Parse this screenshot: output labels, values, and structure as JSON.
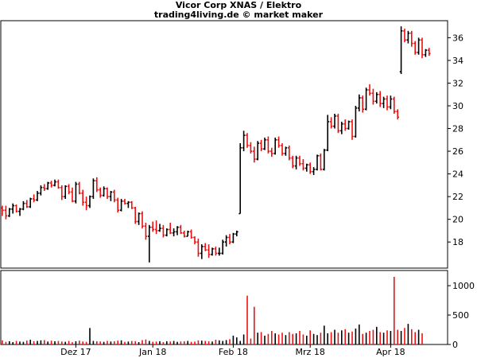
{
  "header": {
    "title": "Vicor Corp XNAS / Elektro",
    "subtitle": "trading4living.de © market maker"
  },
  "colors": {
    "up": "#000000",
    "down": "#ee1111",
    "frame": "#000000"
  },
  "chart_data": [
    {
      "type": "ohlc",
      "title": "Vicor Corp XNAS / Elektro",
      "subtitle": "trading4living.de © market maker",
      "ylim": [
        15.7,
        37.5
      ],
      "y_ticks": [
        18,
        20,
        22,
        24,
        26,
        28,
        30,
        32,
        34,
        36
      ],
      "y_tick_labels": [
        "18",
        "20",
        "22",
        "24",
        "26",
        "28",
        "30",
        "32",
        "34",
        "36"
      ],
      "x_labels": [
        "Dez 17",
        "Jan 18",
        "Feb 18",
        "Mrz 18",
        "Apr 18"
      ],
      "x_label_bar_index": [
        21,
        43,
        66,
        88,
        111
      ],
      "grid": false,
      "bars": [
        {
          "o": 21.0,
          "h": 21.2,
          "l": 20.3,
          "c": 20.8
        },
        {
          "o": 20.8,
          "h": 21.2,
          "l": 20.0,
          "c": 20.3
        },
        {
          "o": 20.3,
          "h": 21.0,
          "l": 20.2,
          "c": 20.9
        },
        {
          "o": 20.9,
          "h": 21.4,
          "l": 20.5,
          "c": 21.2
        },
        {
          "o": 21.2,
          "h": 21.3,
          "l": 20.6,
          "c": 20.7
        },
        {
          "o": 20.7,
          "h": 21.0,
          "l": 20.3,
          "c": 20.9
        },
        {
          "o": 20.9,
          "h": 21.6,
          "l": 20.8,
          "c": 21.4
        },
        {
          "o": 21.4,
          "h": 21.7,
          "l": 21.0,
          "c": 21.1
        },
        {
          "o": 21.1,
          "h": 21.9,
          "l": 21.0,
          "c": 21.8
        },
        {
          "o": 21.8,
          "h": 22.2,
          "l": 21.5,
          "c": 21.7
        },
        {
          "o": 21.7,
          "h": 22.5,
          "l": 21.6,
          "c": 22.3
        },
        {
          "o": 22.3,
          "h": 23.0,
          "l": 22.1,
          "c": 22.8
        },
        {
          "o": 22.8,
          "h": 23.1,
          "l": 22.5,
          "c": 22.7
        },
        {
          "o": 22.7,
          "h": 23.3,
          "l": 22.6,
          "c": 23.2
        },
        {
          "o": 23.2,
          "h": 23.4,
          "l": 22.8,
          "c": 23.0
        },
        {
          "o": 23.0,
          "h": 23.5,
          "l": 22.9,
          "c": 23.3
        },
        {
          "o": 23.3,
          "h": 23.5,
          "l": 22.7,
          "c": 22.8
        },
        {
          "o": 22.8,
          "h": 23.0,
          "l": 21.7,
          "c": 22.0
        },
        {
          "o": 22.0,
          "h": 23.0,
          "l": 21.8,
          "c": 22.9
        },
        {
          "o": 22.9,
          "h": 23.1,
          "l": 22.2,
          "c": 22.4
        },
        {
          "o": 22.4,
          "h": 22.8,
          "l": 21.5,
          "c": 21.6
        },
        {
          "o": 21.6,
          "h": 23.3,
          "l": 21.4,
          "c": 23.1
        },
        {
          "o": 23.1,
          "h": 23.3,
          "l": 22.2,
          "c": 22.3
        },
        {
          "o": 22.3,
          "h": 22.6,
          "l": 21.2,
          "c": 21.5
        },
        {
          "o": 21.5,
          "h": 22.0,
          "l": 20.8,
          "c": 21.2
        },
        {
          "o": 21.2,
          "h": 22.1,
          "l": 21.0,
          "c": 22.0
        },
        {
          "o": 22.0,
          "h": 23.6,
          "l": 21.8,
          "c": 23.4
        },
        {
          "o": 23.4,
          "h": 23.7,
          "l": 22.4,
          "c": 22.6
        },
        {
          "o": 22.6,
          "h": 22.8,
          "l": 21.9,
          "c": 22.1
        },
        {
          "o": 22.1,
          "h": 22.9,
          "l": 22.0,
          "c": 22.7
        },
        {
          "o": 22.7,
          "h": 22.8,
          "l": 21.8,
          "c": 22.0
        },
        {
          "o": 22.0,
          "h": 22.5,
          "l": 21.6,
          "c": 22.4
        },
        {
          "o": 22.4,
          "h": 22.6,
          "l": 21.5,
          "c": 21.7
        },
        {
          "o": 21.7,
          "h": 21.9,
          "l": 20.6,
          "c": 20.8
        },
        {
          "o": 20.8,
          "h": 21.8,
          "l": 20.7,
          "c": 21.6
        },
        {
          "o": 21.6,
          "h": 21.8,
          "l": 21.3,
          "c": 21.4
        },
        {
          "o": 21.4,
          "h": 21.6,
          "l": 21.0,
          "c": 21.5
        },
        {
          "o": 21.5,
          "h": 21.6,
          "l": 20.9,
          "c": 21.0
        },
        {
          "o": 21.0,
          "h": 21.1,
          "l": 19.6,
          "c": 19.8
        },
        {
          "o": 19.8,
          "h": 20.6,
          "l": 19.5,
          "c": 20.5
        },
        {
          "o": 20.5,
          "h": 20.7,
          "l": 19.2,
          "c": 19.4
        },
        {
          "o": 19.4,
          "h": 19.7,
          "l": 18.2,
          "c": 18.5
        },
        {
          "o": 18.5,
          "h": 19.5,
          "l": 16.2,
          "c": 19.3
        },
        {
          "o": 19.3,
          "h": 19.8,
          "l": 18.9,
          "c": 19.1
        },
        {
          "o": 19.1,
          "h": 19.9,
          "l": 18.7,
          "c": 19.0
        },
        {
          "o": 19.0,
          "h": 19.6,
          "l": 18.9,
          "c": 19.2
        },
        {
          "o": 19.2,
          "h": 19.5,
          "l": 18.4,
          "c": 18.6
        },
        {
          "o": 18.6,
          "h": 19.2,
          "l": 18.5,
          "c": 19.1
        },
        {
          "o": 19.1,
          "h": 19.7,
          "l": 18.7,
          "c": 18.8
        },
        {
          "o": 18.8,
          "h": 19.2,
          "l": 18.5,
          "c": 18.9
        },
        {
          "o": 18.9,
          "h": 19.4,
          "l": 18.6,
          "c": 19.3
        },
        {
          "o": 19.3,
          "h": 19.5,
          "l": 18.7,
          "c": 18.8
        },
        {
          "o": 18.8,
          "h": 19.0,
          "l": 18.4,
          "c": 18.5
        },
        {
          "o": 18.5,
          "h": 19.0,
          "l": 18.5,
          "c": 18.9
        },
        {
          "o": 18.9,
          "h": 19.1,
          "l": 18.3,
          "c": 18.4
        },
        {
          "o": 18.4,
          "h": 18.5,
          "l": 17.8,
          "c": 18.0
        },
        {
          "o": 18.0,
          "h": 18.3,
          "l": 16.7,
          "c": 17.0
        },
        {
          "o": 17.0,
          "h": 17.8,
          "l": 16.5,
          "c": 17.6
        },
        {
          "o": 17.6,
          "h": 17.9,
          "l": 17.2,
          "c": 17.3
        },
        {
          "o": 17.3,
          "h": 17.8,
          "l": 16.6,
          "c": 16.9
        },
        {
          "o": 16.9,
          "h": 17.5,
          "l": 16.8,
          "c": 17.4
        },
        {
          "o": 17.4,
          "h": 17.6,
          "l": 16.8,
          "c": 17.0
        },
        {
          "o": 17.0,
          "h": 17.5,
          "l": 16.8,
          "c": 17.0
        },
        {
          "o": 17.0,
          "h": 18.2,
          "l": 16.9,
          "c": 18.0
        },
        {
          "o": 18.0,
          "h": 18.6,
          "l": 17.6,
          "c": 18.4
        },
        {
          "o": 18.4,
          "h": 18.7,
          "l": 17.8,
          "c": 18.0
        },
        {
          "o": 18.0,
          "h": 18.8,
          "l": 17.9,
          "c": 18.7
        },
        {
          "o": 18.7,
          "h": 19.0,
          "l": 18.5,
          "c": 18.9
        },
        {
          "o": 20.5,
          "h": 26.7,
          "l": 20.5,
          "c": 26.3
        },
        {
          "o": 26.3,
          "h": 27.8,
          "l": 26.0,
          "c": 27.4
        },
        {
          "o": 27.4,
          "h": 27.6,
          "l": 26.3,
          "c": 26.5
        },
        {
          "o": 26.5,
          "h": 26.8,
          "l": 25.8,
          "c": 26.0
        },
        {
          "o": 26.0,
          "h": 26.4,
          "l": 25.0,
          "c": 25.3
        },
        {
          "o": 25.3,
          "h": 26.9,
          "l": 25.2,
          "c": 26.7
        },
        {
          "o": 26.7,
          "h": 27.0,
          "l": 26.0,
          "c": 26.2
        },
        {
          "o": 26.2,
          "h": 27.2,
          "l": 26.1,
          "c": 27.0
        },
        {
          "o": 27.0,
          "h": 27.3,
          "l": 25.8,
          "c": 26.0
        },
        {
          "o": 26.0,
          "h": 26.3,
          "l": 25.5,
          "c": 25.8
        },
        {
          "o": 25.8,
          "h": 27.2,
          "l": 25.7,
          "c": 27.0
        },
        {
          "o": 27.0,
          "h": 27.3,
          "l": 26.3,
          "c": 26.5
        },
        {
          "o": 26.5,
          "h": 26.7,
          "l": 25.6,
          "c": 25.8
        },
        {
          "o": 25.8,
          "h": 26.4,
          "l": 25.6,
          "c": 26.3
        },
        {
          "o": 26.3,
          "h": 26.5,
          "l": 25.2,
          "c": 25.4
        },
        {
          "o": 25.4,
          "h": 25.6,
          "l": 24.5,
          "c": 24.7
        },
        {
          "o": 24.7,
          "h": 25.6,
          "l": 24.4,
          "c": 25.4
        },
        {
          "o": 25.4,
          "h": 25.6,
          "l": 24.7,
          "c": 24.9
        },
        {
          "o": 24.9,
          "h": 25.3,
          "l": 24.3,
          "c": 24.5
        },
        {
          "o": 24.5,
          "h": 24.9,
          "l": 24.2,
          "c": 24.8
        },
        {
          "o": 24.8,
          "h": 25.0,
          "l": 24.0,
          "c": 24.2
        },
        {
          "o": 24.2,
          "h": 24.6,
          "l": 23.9,
          "c": 24.4
        },
        {
          "o": 24.4,
          "h": 25.7,
          "l": 24.3,
          "c": 25.6
        },
        {
          "o": 25.6,
          "h": 25.8,
          "l": 24.3,
          "c": 24.4
        },
        {
          "o": 24.4,
          "h": 26.2,
          "l": 24.3,
          "c": 26.1
        },
        {
          "o": 26.1,
          "h": 29.2,
          "l": 26.0,
          "c": 28.6
        },
        {
          "o": 28.6,
          "h": 29.0,
          "l": 28.0,
          "c": 28.2
        },
        {
          "o": 28.2,
          "h": 29.3,
          "l": 28.0,
          "c": 29.1
        },
        {
          "o": 29.1,
          "h": 29.3,
          "l": 27.6,
          "c": 27.8
        },
        {
          "o": 27.8,
          "h": 28.6,
          "l": 27.5,
          "c": 28.4
        },
        {
          "o": 28.4,
          "h": 28.8,
          "l": 27.8,
          "c": 28.0
        },
        {
          "o": 28.0,
          "h": 28.7,
          "l": 27.9,
          "c": 28.6
        },
        {
          "o": 28.6,
          "h": 28.8,
          "l": 27.0,
          "c": 27.3
        },
        {
          "o": 27.3,
          "h": 30.0,
          "l": 27.2,
          "c": 29.8
        },
        {
          "o": 29.8,
          "h": 31.0,
          "l": 29.5,
          "c": 30.7
        },
        {
          "o": 30.7,
          "h": 30.9,
          "l": 29.4,
          "c": 29.7
        },
        {
          "o": 29.7,
          "h": 31.6,
          "l": 29.6,
          "c": 31.4
        },
        {
          "o": 31.4,
          "h": 31.9,
          "l": 30.9,
          "c": 31.1
        },
        {
          "o": 31.1,
          "h": 31.5,
          "l": 30.1,
          "c": 30.4
        },
        {
          "o": 30.4,
          "h": 31.2,
          "l": 30.2,
          "c": 31.0
        },
        {
          "o": 31.0,
          "h": 31.3,
          "l": 29.9,
          "c": 30.2
        },
        {
          "o": 30.2,
          "h": 30.8,
          "l": 29.8,
          "c": 30.6
        },
        {
          "o": 30.6,
          "h": 30.9,
          "l": 29.6,
          "c": 29.9
        },
        {
          "o": 29.9,
          "h": 30.9,
          "l": 29.7,
          "c": 30.6
        },
        {
          "o": 30.6,
          "h": 30.8,
          "l": 29.3,
          "c": 29.5
        },
        {
          "o": 29.5,
          "h": 29.7,
          "l": 28.8,
          "c": 29.0
        },
        {
          "o": 33.0,
          "h": 37.0,
          "l": 32.8,
          "c": 36.6
        },
        {
          "o": 36.6,
          "h": 36.8,
          "l": 35.6,
          "c": 35.8
        },
        {
          "o": 35.8,
          "h": 36.6,
          "l": 35.5,
          "c": 36.4
        },
        {
          "o": 36.4,
          "h": 36.6,
          "l": 35.2,
          "c": 35.5
        },
        {
          "o": 35.5,
          "h": 35.7,
          "l": 34.5,
          "c": 34.7
        },
        {
          "o": 34.7,
          "h": 36.0,
          "l": 34.5,
          "c": 35.8
        },
        {
          "o": 35.8,
          "h": 36.0,
          "l": 34.2,
          "c": 34.5
        },
        {
          "o": 34.5,
          "h": 35.0,
          "l": 34.3,
          "c": 34.9
        },
        {
          "o": 34.9,
          "h": 35.1,
          "l": 34.4,
          "c": 34.6
        }
      ]
    },
    {
      "type": "bar",
      "title": "",
      "ylim": [
        0,
        1150
      ],
      "y_ticks": [
        0,
        500,
        1000
      ],
      "y_tick_labels": [
        "0",
        "500",
        "1000"
      ],
      "grid": false,
      "volume": [
        70,
        45,
        55,
        40,
        60,
        50,
        45,
        65,
        80,
        55,
        60,
        70,
        75,
        50,
        65,
        55,
        60,
        50,
        45,
        60,
        40,
        55,
        65,
        50,
        45,
        280,
        60,
        55,
        50,
        45,
        60,
        50,
        55,
        65,
        70,
        45,
        50,
        60,
        55,
        40,
        75,
        85,
        60,
        45,
        50,
        55,
        40,
        55,
        50,
        60,
        45,
        50,
        55,
        60,
        45,
        50,
        70,
        65,
        60,
        55,
        50,
        80,
        70,
        60,
        75,
        90,
        150,
        120,
        60,
        170,
        830,
        100,
        640,
        200,
        210,
        150,
        180,
        230,
        190,
        170,
        200,
        160,
        210,
        180,
        190,
        230,
        170,
        150,
        240,
        180,
        160,
        200,
        320,
        190,
        210,
        250,
        200,
        240,
        260,
        200,
        220,
        270,
        340,
        180,
        200,
        230,
        250,
        300,
        210,
        200,
        240,
        230,
        1150,
        250,
        230,
        280,
        350,
        260,
        210,
        250,
        190
      ]
    }
  ]
}
